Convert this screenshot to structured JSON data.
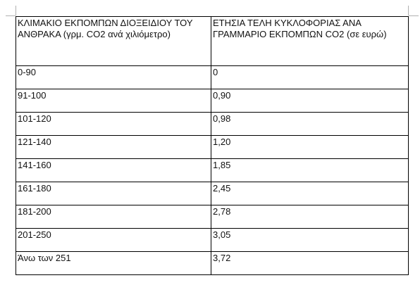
{
  "table": {
    "header": [
      "ΚΛΙΜΑΚΙΟ ΕΚΠΟΜΠΩΝ ΔΙΟΞΕΙΔΙΟΥ ΤΟΥ ΑΝΘΡΑΚΑ (γρμ. CO2 ανά χιλιόμετρο)",
      "ΕΤΗΣΙΑ ΤΕΛΗ ΚΥΚΛΟΦΟΡΙΑΣ ΑΝΑ ΓΡΑΜΜΑΡΙΟ ΕΚΠΟΜΠΩΝ CO2 (σε ευρώ)"
    ],
    "rows": [
      [
        "0-90",
        "0"
      ],
      [
        "91-100",
        "0,90"
      ],
      [
        "101-120",
        "0,98"
      ],
      [
        "121-140",
        "1,20"
      ],
      [
        "141-160",
        "1,85"
      ],
      [
        "161-180",
        "2,45"
      ],
      [
        "181-200",
        "2,78"
      ],
      [
        "201-250",
        "3,05"
      ],
      [
        "Άνω των 251",
        "3,72"
      ]
    ]
  }
}
